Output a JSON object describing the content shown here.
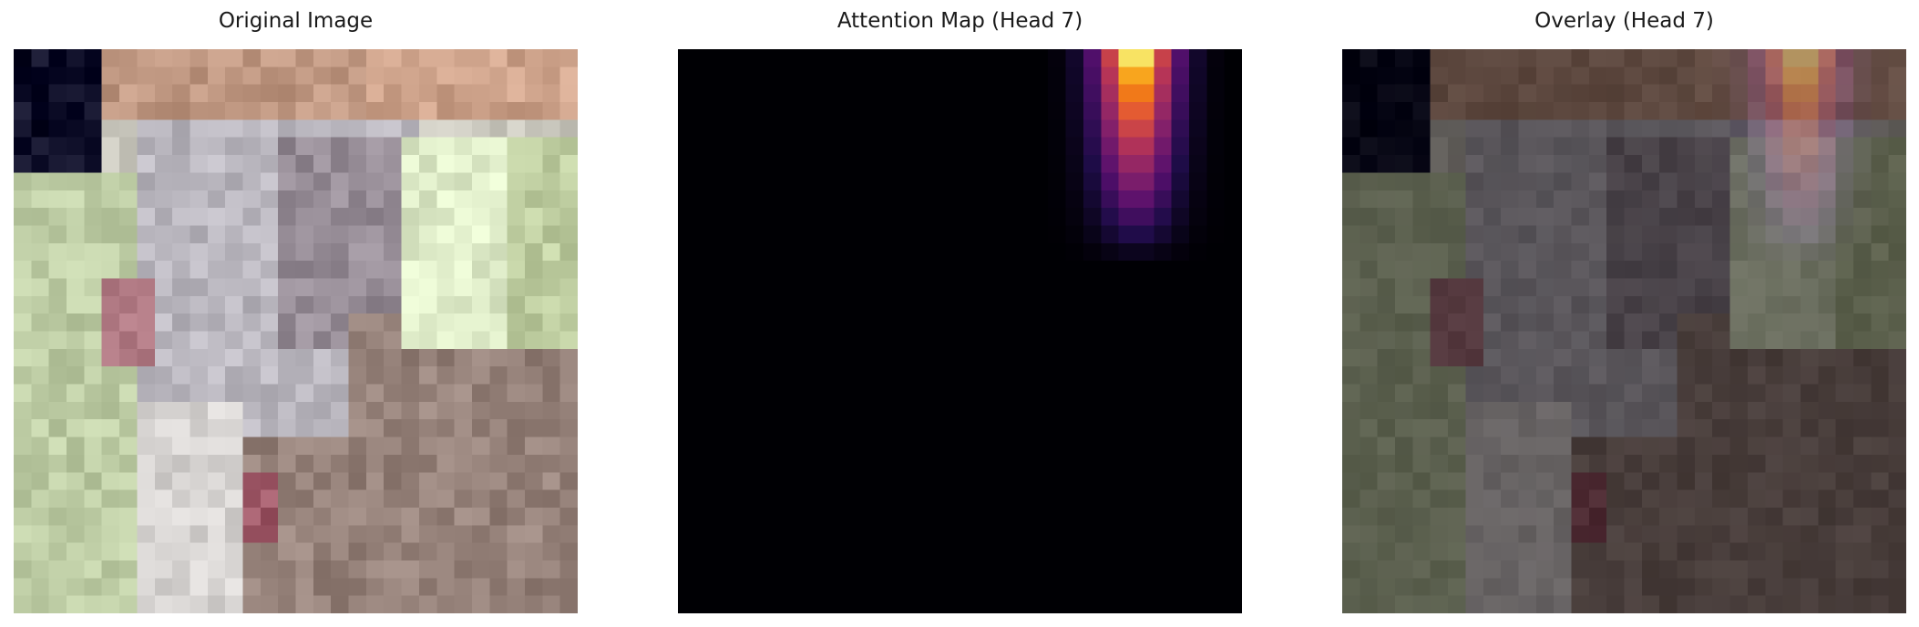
{
  "figure": {
    "panels": [
      {
        "title": "Original Image"
      },
      {
        "title": "Attention Map (Head 7)"
      },
      {
        "title": "Overlay (Head 7)"
      }
    ],
    "attention_colormap": "inferno",
    "background_color": "#ffffff"
  }
}
